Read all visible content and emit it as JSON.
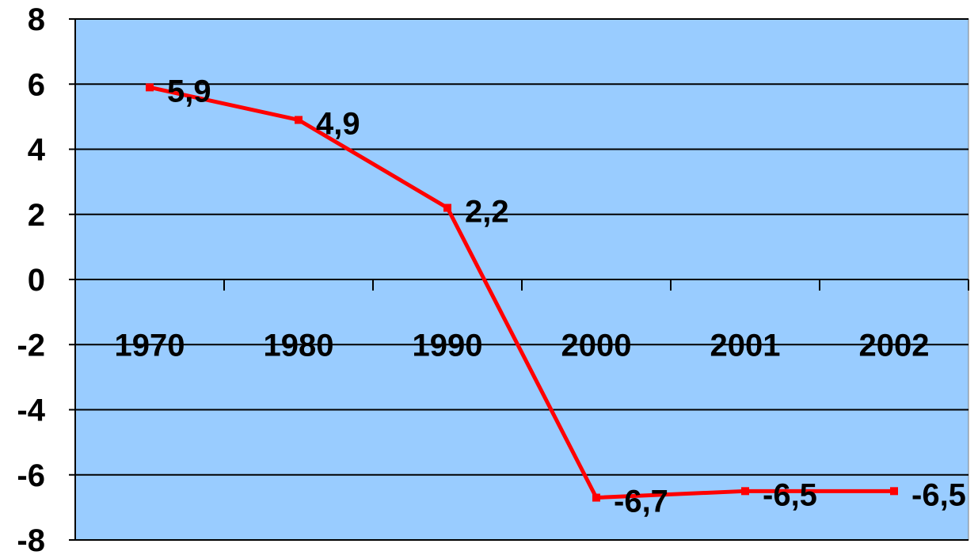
{
  "chart_data": {
    "type": "line",
    "categories": [
      "1970",
      "1980",
      "1990",
      "2000",
      "2001",
      "2002"
    ],
    "series": [
      {
        "values": [
          5.9,
          4.9,
          2.2,
          -6.7,
          -6.5,
          -6.5
        ]
      }
    ],
    "data_labels": [
      "5,9",
      "4,9",
      "2,2",
      "-6,7",
      "-6,5",
      "-6,5"
    ],
    "y_ticks": [
      "8",
      "6",
      "4",
      "2",
      "0",
      "-2",
      "-4",
      "-6",
      "-8"
    ],
    "ylim": [
      -8,
      8
    ],
    "title": "",
    "xlabel": "",
    "ylabel": "",
    "grid": true,
    "legend": "none",
    "colors": {
      "plot_background": "#99ccff",
      "line": "#ff0000",
      "grid": "#000000"
    }
  }
}
